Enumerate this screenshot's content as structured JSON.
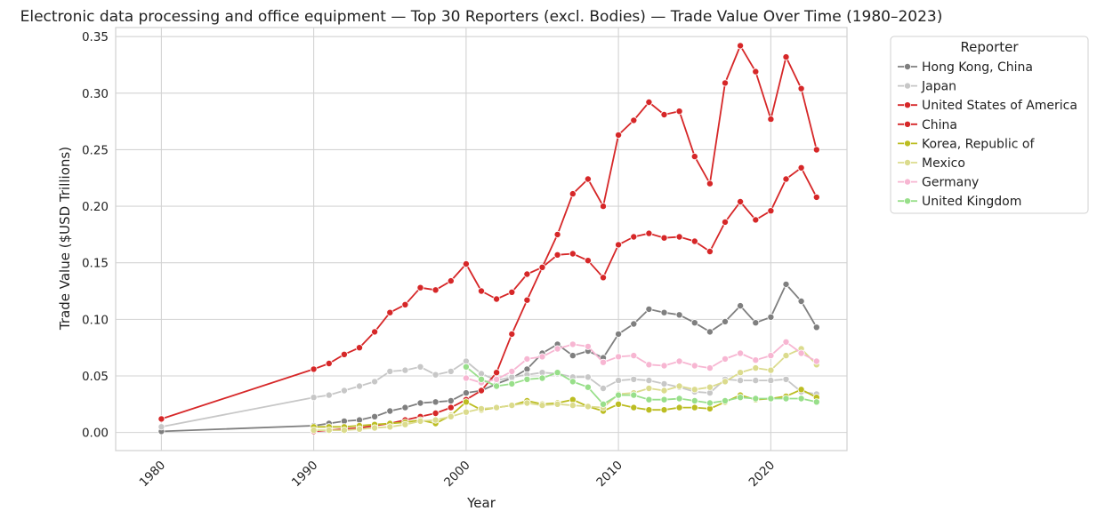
{
  "chart_data": {
    "type": "line",
    "title": "Electronic data processing and office equipment — Top 30 Reporters (excl. Bodies) — Trade Value Over Time (1980–2023)",
    "xlabel": "Year",
    "ylabel": "Trade Value ($USD Trillions)",
    "xlim": [
      1977,
      2025
    ],
    "ylim": [
      -0.016,
      0.358
    ],
    "xticks": [
      1980,
      1990,
      2000,
      2010,
      2020
    ],
    "xtick_labels": [
      "1980",
      "1990",
      "2000",
      "2010",
      "2020"
    ],
    "yticks": [
      0.0,
      0.05,
      0.1,
      0.15,
      0.2,
      0.25,
      0.3,
      0.35
    ],
    "ytick_labels": [
      "0.00",
      "0.05",
      "0.10",
      "0.15",
      "0.20",
      "0.25",
      "0.30",
      "0.35"
    ],
    "grid": true,
    "legend": {
      "title": "Reporter",
      "placement": "outside-top-right"
    },
    "series": [
      {
        "name": "Hong Kong, China",
        "color": "#7f7f7f",
        "x": [
          1980,
          1990,
          1991,
          1992,
          1993,
          1994,
          1995,
          1996,
          1997,
          1998,
          1999,
          2000,
          2001,
          2002,
          2003,
          2004,
          2005,
          2006,
          2007,
          2008,
          2009,
          2010,
          2011,
          2012,
          2013,
          2014,
          2015,
          2016,
          2017,
          2018,
          2019,
          2020,
          2021,
          2022,
          2023
        ],
        "y": [
          0.001,
          0.006,
          0.008,
          0.01,
          0.011,
          0.014,
          0.019,
          0.022,
          0.026,
          0.027,
          0.028,
          0.035,
          0.037,
          0.043,
          0.048,
          0.056,
          0.07,
          0.078,
          0.068,
          0.072,
          0.066,
          0.087,
          0.096,
          0.109,
          0.106,
          0.104,
          0.097,
          0.089,
          0.098,
          0.112,
          0.097,
          0.102,
          0.131,
          0.116,
          0.093
        ]
      },
      {
        "name": "Japan",
        "color": "#c7c7c7",
        "x": [
          1980,
          1990,
          1991,
          1992,
          1993,
          1994,
          1995,
          1996,
          1997,
          1998,
          1999,
          2000,
          2001,
          2002,
          2003,
          2004,
          2005,
          2006,
          2007,
          2008,
          2009,
          2010,
          2011,
          2012,
          2013,
          2014,
          2015,
          2016,
          2017,
          2018,
          2019,
          2020,
          2021,
          2022,
          2023
        ],
        "y": [
          0.005,
          0.031,
          0.033,
          0.037,
          0.041,
          0.045,
          0.054,
          0.055,
          0.058,
          0.051,
          0.054,
          0.063,
          0.052,
          0.046,
          0.049,
          0.051,
          0.053,
          0.052,
          0.049,
          0.049,
          0.039,
          0.046,
          0.047,
          0.046,
          0.043,
          0.04,
          0.036,
          0.035,
          0.047,
          0.046,
          0.046,
          0.046,
          0.047,
          0.036,
          0.034
        ]
      },
      {
        "name": "United States of America",
        "color": "#d62728",
        "x": [
          1980,
          1990,
          1991,
          1992,
          1993,
          1994,
          1995,
          1996,
          1997,
          1998,
          1999,
          2000,
          2001,
          2002,
          2003,
          2004,
          2005,
          2006,
          2007,
          2008,
          2009,
          2010,
          2011,
          2012,
          2013,
          2014,
          2015,
          2016,
          2017,
          2018,
          2019,
          2020,
          2021,
          2022,
          2023
        ],
        "y": [
          0.012,
          0.056,
          0.061,
          0.069,
          0.075,
          0.089,
          0.106,
          0.113,
          0.128,
          0.126,
          0.134,
          0.149,
          0.125,
          0.118,
          0.124,
          0.14,
          0.146,
          0.157,
          0.158,
          0.152,
          0.137,
          0.166,
          0.173,
          0.176,
          0.172,
          0.173,
          0.169,
          0.16,
          0.186,
          0.204,
          0.188,
          0.196,
          0.224,
          0.234,
          0.208
        ]
      },
      {
        "name": "China",
        "color": "#d62728",
        "x": [
          1990,
          1991,
          1992,
          1993,
          1994,
          1995,
          1996,
          1997,
          1998,
          1999,
          2000,
          2001,
          2002,
          2003,
          2004,
          2005,
          2006,
          2007,
          2008,
          2009,
          2010,
          2011,
          2012,
          2013,
          2014,
          2015,
          2016,
          2017,
          2018,
          2019,
          2020,
          2021,
          2022,
          2023
        ],
        "y": [
          0.001,
          0.002,
          0.003,
          0.004,
          0.006,
          0.008,
          0.011,
          0.014,
          0.017,
          0.022,
          0.029,
          0.037,
          0.053,
          0.087,
          0.117,
          0.146,
          0.175,
          0.211,
          0.224,
          0.2,
          0.263,
          0.276,
          0.292,
          0.281,
          0.284,
          0.244,
          0.22,
          0.309,
          0.342,
          0.319,
          0.277,
          0.332,
          0.304,
          0.25
        ]
      },
      {
        "name": "Korea, Republic of",
        "color": "#bcbd22",
        "x": [
          1990,
          1991,
          1992,
          1993,
          1994,
          1995,
          1996,
          1997,
          1998,
          1999,
          2000,
          2001,
          2002,
          2003,
          2004,
          2005,
          2006,
          2007,
          2008,
          2009,
          2010,
          2011,
          2012,
          2013,
          2014,
          2015,
          2016,
          2017,
          2018,
          2019,
          2020,
          2021,
          2022,
          2023
        ],
        "y": [
          0.005,
          0.005,
          0.005,
          0.006,
          0.007,
          0.008,
          0.009,
          0.011,
          0.008,
          0.015,
          0.027,
          0.02,
          0.022,
          0.024,
          0.028,
          0.025,
          0.026,
          0.029,
          0.023,
          0.019,
          0.025,
          0.022,
          0.02,
          0.02,
          0.022,
          0.022,
          0.021,
          0.027,
          0.033,
          0.029,
          0.03,
          0.032,
          0.038,
          0.031
        ]
      },
      {
        "name": "Mexico",
        "color": "#dbdb8d",
        "x": [
          1990,
          1991,
          1992,
          1993,
          1994,
          1995,
          1996,
          1997,
          1998,
          1999,
          2000,
          2001,
          2002,
          2003,
          2004,
          2005,
          2006,
          2007,
          2008,
          2009,
          2010,
          2011,
          2012,
          2013,
          2014,
          2015,
          2016,
          2017,
          2018,
          2019,
          2020,
          2021,
          2022,
          2023
        ],
        "y": [
          0.002,
          0.002,
          0.002,
          0.003,
          0.004,
          0.005,
          0.007,
          0.01,
          0.011,
          0.014,
          0.018,
          0.021,
          0.022,
          0.024,
          0.026,
          0.024,
          0.025,
          0.024,
          0.023,
          0.022,
          0.034,
          0.035,
          0.039,
          0.037,
          0.041,
          0.038,
          0.04,
          0.045,
          0.053,
          0.057,
          0.055,
          0.068,
          0.074,
          0.06
        ]
      },
      {
        "name": "Germany",
        "color": "#f7b6d2",
        "x": [
          2000,
          2001,
          2002,
          2003,
          2004,
          2005,
          2006,
          2007,
          2008,
          2009,
          2010,
          2011,
          2012,
          2013,
          2014,
          2015,
          2016,
          2017,
          2018,
          2019,
          2020,
          2021,
          2022,
          2023
        ],
        "y": [
          0.048,
          0.044,
          0.047,
          0.054,
          0.065,
          0.067,
          0.074,
          0.078,
          0.076,
          0.062,
          0.067,
          0.068,
          0.06,
          0.059,
          0.063,
          0.059,
          0.057,
          0.065,
          0.07,
          0.064,
          0.068,
          0.08,
          0.07,
          0.063
        ]
      },
      {
        "name": "United Kingdom",
        "color": "#98df8a",
        "x": [
          2000,
          2001,
          2002,
          2003,
          2004,
          2005,
          2006,
          2007,
          2008,
          2009,
          2010,
          2011,
          2012,
          2013,
          2014,
          2015,
          2016,
          2017,
          2018,
          2019,
          2020,
          2021,
          2022,
          2023
        ],
        "y": [
          0.058,
          0.047,
          0.041,
          0.043,
          0.047,
          0.048,
          0.053,
          0.045,
          0.04,
          0.025,
          0.033,
          0.033,
          0.029,
          0.029,
          0.03,
          0.028,
          0.026,
          0.028,
          0.031,
          0.03,
          0.03,
          0.03,
          0.03,
          0.027
        ]
      }
    ]
  }
}
